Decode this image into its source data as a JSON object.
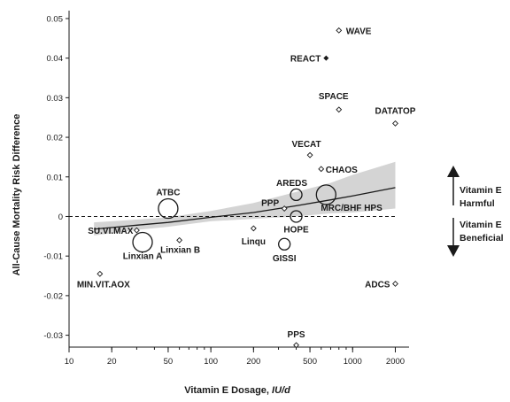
{
  "chart_data": {
    "type": "scatter",
    "x_scale": "log",
    "xlim": [
      10,
      2500
    ],
    "ylim": [
      -0.033,
      0.052
    ],
    "xlabel_main": "Vitamin E Dosage,",
    "xlabel_unit": "IU/d",
    "ylabel": "All-Cause Mortality Risk Difference",
    "x_ticks": [
      10,
      20,
      50,
      100,
      200,
      500,
      1000,
      2000
    ],
    "x_tick_labels": [
      "10",
      "20",
      "50",
      "100",
      "200",
      "500",
      "1000",
      "2000"
    ],
    "y_ticks": [
      -0.03,
      -0.02,
      -0.01,
      0,
      0.01,
      0.02,
      0.03,
      0.04,
      0.05
    ],
    "y_tick_labels": [
      "-0.03",
      "-0.02",
      "-0.01",
      "0",
      "0.01",
      "0.02",
      "0.03",
      "0.04",
      "0.05"
    ],
    "grid": false,
    "reference_line_y": 0,
    "points": [
      {
        "label": "WAVE",
        "x": 800,
        "y": 0.047,
        "size": "small",
        "filled": false
      },
      {
        "label": "REACT",
        "x": 650,
        "y": 0.04,
        "size": "small",
        "filled": true
      },
      {
        "label": "SPACE",
        "x": 800,
        "y": 0.027,
        "size": "small",
        "filled": false
      },
      {
        "label": "DATATOP",
        "x": 2000,
        "y": 0.0235,
        "size": "small",
        "filled": false
      },
      {
        "label": "VECAT",
        "x": 500,
        "y": 0.0155,
        "size": "small",
        "filled": false
      },
      {
        "label": "CHAOS",
        "x": 600,
        "y": 0.012,
        "size": "small",
        "filled": false
      },
      {
        "label": "AREDS",
        "x": 400,
        "y": 0.0055,
        "size": "medium",
        "filled": false
      },
      {
        "label": "ATBC",
        "x": 50,
        "y": 0.002,
        "size": "large",
        "filled": false
      },
      {
        "label": "MRC/BHF HPS",
        "x": 650,
        "y": 0.0055,
        "size": "large",
        "filled": false
      },
      {
        "label": "PPP",
        "x": 330,
        "y": 0.002,
        "size": "small",
        "filled": false
      },
      {
        "label": "HOPE",
        "x": 400,
        "y": 0,
        "size": "medium",
        "filled": false
      },
      {
        "label": "SU.VI.MAX",
        "x": 30,
        "y": -0.0035,
        "size": "small",
        "filled": false
      },
      {
        "label": "Linqu",
        "x": 200,
        "y": -0.003,
        "size": "small",
        "filled": false
      },
      {
        "label": "Linxian A",
        "x": 33,
        "y": -0.0065,
        "size": "large",
        "filled": false
      },
      {
        "label": "Linxian B",
        "x": 60,
        "y": -0.006,
        "size": "small",
        "filled": false
      },
      {
        "label": "GISSI",
        "x": 330,
        "y": -0.007,
        "size": "medium",
        "filled": false
      },
      {
        "label": "MIN.VIT.AOX",
        "x": 16.5,
        "y": -0.0145,
        "size": "small",
        "filled": false
      },
      {
        "label": "ADCS",
        "x": 2000,
        "y": -0.017,
        "size": "small",
        "filled": false
      },
      {
        "label": "PPS",
        "x": 400,
        "y": -0.0325,
        "size": "small",
        "filled": false
      }
    ],
    "trend": {
      "x": [
        15,
        30,
        50,
        100,
        200,
        400,
        700,
        1000,
        2000
      ],
      "y": [
        -0.0032,
        -0.0022,
        -0.0015,
        -0.0002,
        0.001,
        0.0027,
        0.0042,
        0.0052,
        0.0073
      ],
      "ci_lower": [
        -0.0048,
        -0.0034,
        -0.0026,
        -0.0012,
        -0.0006,
        0.0,
        0.0008,
        0.001,
        0.002
      ],
      "ci_upper": [
        -0.0015,
        -0.0008,
        -0.0002,
        0.0014,
        0.0034,
        0.0062,
        0.0085,
        0.0105,
        0.0138
      ]
    },
    "annotations": {
      "harmful": [
        "Vitamin E",
        "Harmful"
      ],
      "beneficial": [
        "Vitamin E",
        "Beneficial"
      ]
    }
  }
}
